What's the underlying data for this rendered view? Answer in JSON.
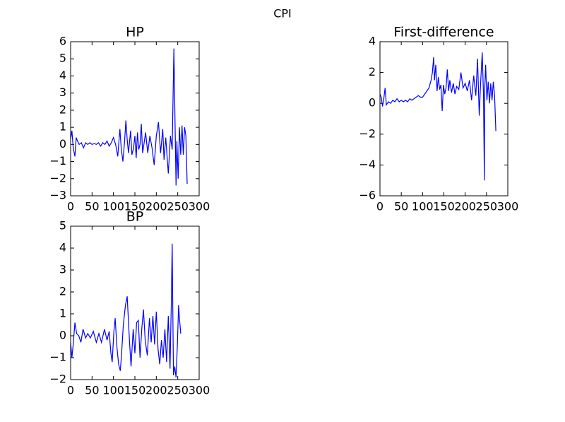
{
  "title": "CPI",
  "chart_data": [
    {
      "type": "line",
      "title": "HP",
      "xlim": [
        0,
        300
      ],
      "ylim": [
        -3,
        6
      ],
      "xticks": [
        0,
        50,
        100,
        150,
        200,
        250,
        300
      ],
      "yticks": [
        {
          "value": -3,
          "label": "−3"
        },
        {
          "value": -2,
          "label": "−2"
        },
        {
          "value": -1,
          "label": "−1"
        },
        0,
        1,
        2,
        3,
        4,
        5,
        6
      ],
      "series": [
        {
          "color": "#0000ff",
          "x": [
            0,
            3,
            6,
            10,
            13,
            16,
            20,
            25,
            30,
            35,
            40,
            45,
            50,
            55,
            60,
            65,
            70,
            75,
            80,
            85,
            90,
            95,
            100,
            105,
            110,
            115,
            118,
            122,
            126,
            129,
            132,
            135,
            140,
            143,
            147,
            150,
            153,
            156,
            159,
            162,
            165,
            168,
            171,
            175,
            180,
            185,
            190,
            195,
            200,
            205,
            210,
            215,
            218,
            222,
            228,
            233,
            237,
            241,
            246,
            248,
            251,
            254,
            257,
            260,
            263,
            266,
            269,
            272
          ],
          "values": [
            0.3,
            0.8,
            -0.2,
            -0.7,
            0.4,
            0.2,
            0,
            0.1,
            -0.2,
            0.1,
            0,
            0.1,
            0,
            0.05,
            0,
            0.1,
            -0.1,
            0.1,
            0,
            0.2,
            -0.1,
            0.1,
            0.4,
            0,
            -0.7,
            0.9,
            -0.2,
            -1,
            0.2,
            1.4,
            0.3,
            -0.5,
            0.8,
            -0.6,
            -0.2,
            0.5,
            -0.8,
            0.7,
            -0.3,
            0,
            1.2,
            -0.5,
            0,
            0.7,
            -0.5,
            0.5,
            -0.2,
            -1.2,
            0.5,
            1.3,
            -0.5,
            0.9,
            -0.9,
            0.4,
            -1.7,
            0.5,
            -0.3,
            5.6,
            -2.4,
            0.2,
            -2,
            1,
            -0.6,
            1.1,
            -0.6,
            1,
            0.5,
            -2.3
          ]
        }
      ]
    },
    {
      "type": "line",
      "title": "First-difference",
      "xlim": [
        0,
        300
      ],
      "ylim": [
        -6,
        4
      ],
      "xticks": [
        0,
        50,
        100,
        150,
        200,
        250,
        300
      ],
      "yticks": [
        {
          "value": -6,
          "label": "−6"
        },
        {
          "value": -4,
          "label": "−4"
        },
        {
          "value": -2,
          "label": "−2"
        },
        0,
        2,
        4
      ],
      "series": [
        {
          "color": "#0000ff",
          "x": [
            0,
            3,
            6,
            9,
            12,
            15,
            20,
            25,
            30,
            35,
            40,
            45,
            50,
            55,
            60,
            65,
            70,
            75,
            80,
            85,
            90,
            95,
            100,
            105,
            110,
            115,
            120,
            123,
            126,
            128,
            131,
            134,
            137,
            140,
            143,
            146,
            149,
            152,
            155,
            158,
            161,
            164,
            168,
            172,
            176,
            180,
            185,
            190,
            195,
            200,
            205,
            210,
            215,
            220,
            225,
            229,
            233,
            236,
            240,
            243,
            245,
            246,
            248,
            251,
            254,
            257,
            260,
            263,
            266,
            269,
            272
          ],
          "values": [
            0.6,
            0.4,
            -0.2,
            0.3,
            1,
            -0.1,
            0.1,
            0,
            0.2,
            0.1,
            0.3,
            0.1,
            0.2,
            0.1,
            0.2,
            0.1,
            0.3,
            0.2,
            0.3,
            0.4,
            0.5,
            0.4,
            0.4,
            0.6,
            0.8,
            1,
            1.5,
            2,
            3,
            1.5,
            2.5,
            0.8,
            1.7,
            0.9,
            1.2,
            -0.5,
            1.2,
            0.6,
            1,
            2.2,
            0.8,
            1.5,
            0.7,
            1.3,
            0.6,
            1.1,
            0.9,
            2,
            1,
            1.3,
            0.8,
            1.5,
            0.2,
            1.8,
            0.5,
            2.9,
            -0.8,
            1.2,
            3.3,
            0.5,
            -5,
            1,
            2.5,
            0.2,
            1.4,
            0,
            1.3,
            0.2,
            1.4,
            0.5,
            -1.8
          ]
        }
      ]
    },
    {
      "type": "line",
      "title": "BP",
      "xlim": [
        0,
        300
      ],
      "ylim": [
        -2,
        5
      ],
      "xticks": [
        0,
        50,
        100,
        150,
        200,
        250,
        300
      ],
      "yticks": [
        {
          "value": -2,
          "label": "−2"
        },
        {
          "value": -1,
          "label": "−1"
        },
        0,
        1,
        2,
        3,
        4,
        5
      ],
      "series": [
        {
          "color": "#0000ff",
          "x": [
            0,
            3,
            6,
            10,
            14,
            19,
            24,
            29,
            35,
            40,
            46,
            53,
            60,
            66,
            72,
            79,
            85,
            90,
            94,
            97,
            101,
            104,
            108,
            112,
            116,
            119,
            123,
            128,
            132,
            137,
            141,
            146,
            150,
            154,
            158,
            162,
            166,
            170,
            174,
            179,
            184,
            188,
            192,
            196,
            200,
            204,
            208,
            212,
            216,
            220,
            224,
            228,
            232,
            235,
            237,
            240,
            243,
            246,
            249,
            252,
            254,
            257
          ],
          "values": [
            -0.3,
            -1,
            -0.4,
            0.6,
            0.1,
            0,
            -0.3,
            0.3,
            -0.1,
            0.1,
            -0.1,
            0.2,
            -0.3,
            0.1,
            -0.3,
            0.3,
            -0.2,
            0.2,
            -0.8,
            -1.2,
            0.2,
            0.8,
            -0.5,
            -1.3,
            -1.6,
            -0.8,
            0.5,
            1.4,
            1.8,
            -0.1,
            -1.4,
            0.3,
            -0.8,
            0.6,
            0.7,
            -1,
            0.3,
            1.2,
            -0.2,
            -0.9,
            0.8,
            -0.3,
            0.9,
            -0.4,
            1.1,
            -0.6,
            -1.3,
            -0.2,
            -1,
            0.3,
            -1.2,
            0.9,
            -1.5,
            1.5,
            4.2,
            -1.8,
            -1.4,
            -1.9,
            -0.5,
            1.4,
            0.8,
            0.1
          ]
        }
      ]
    }
  ]
}
